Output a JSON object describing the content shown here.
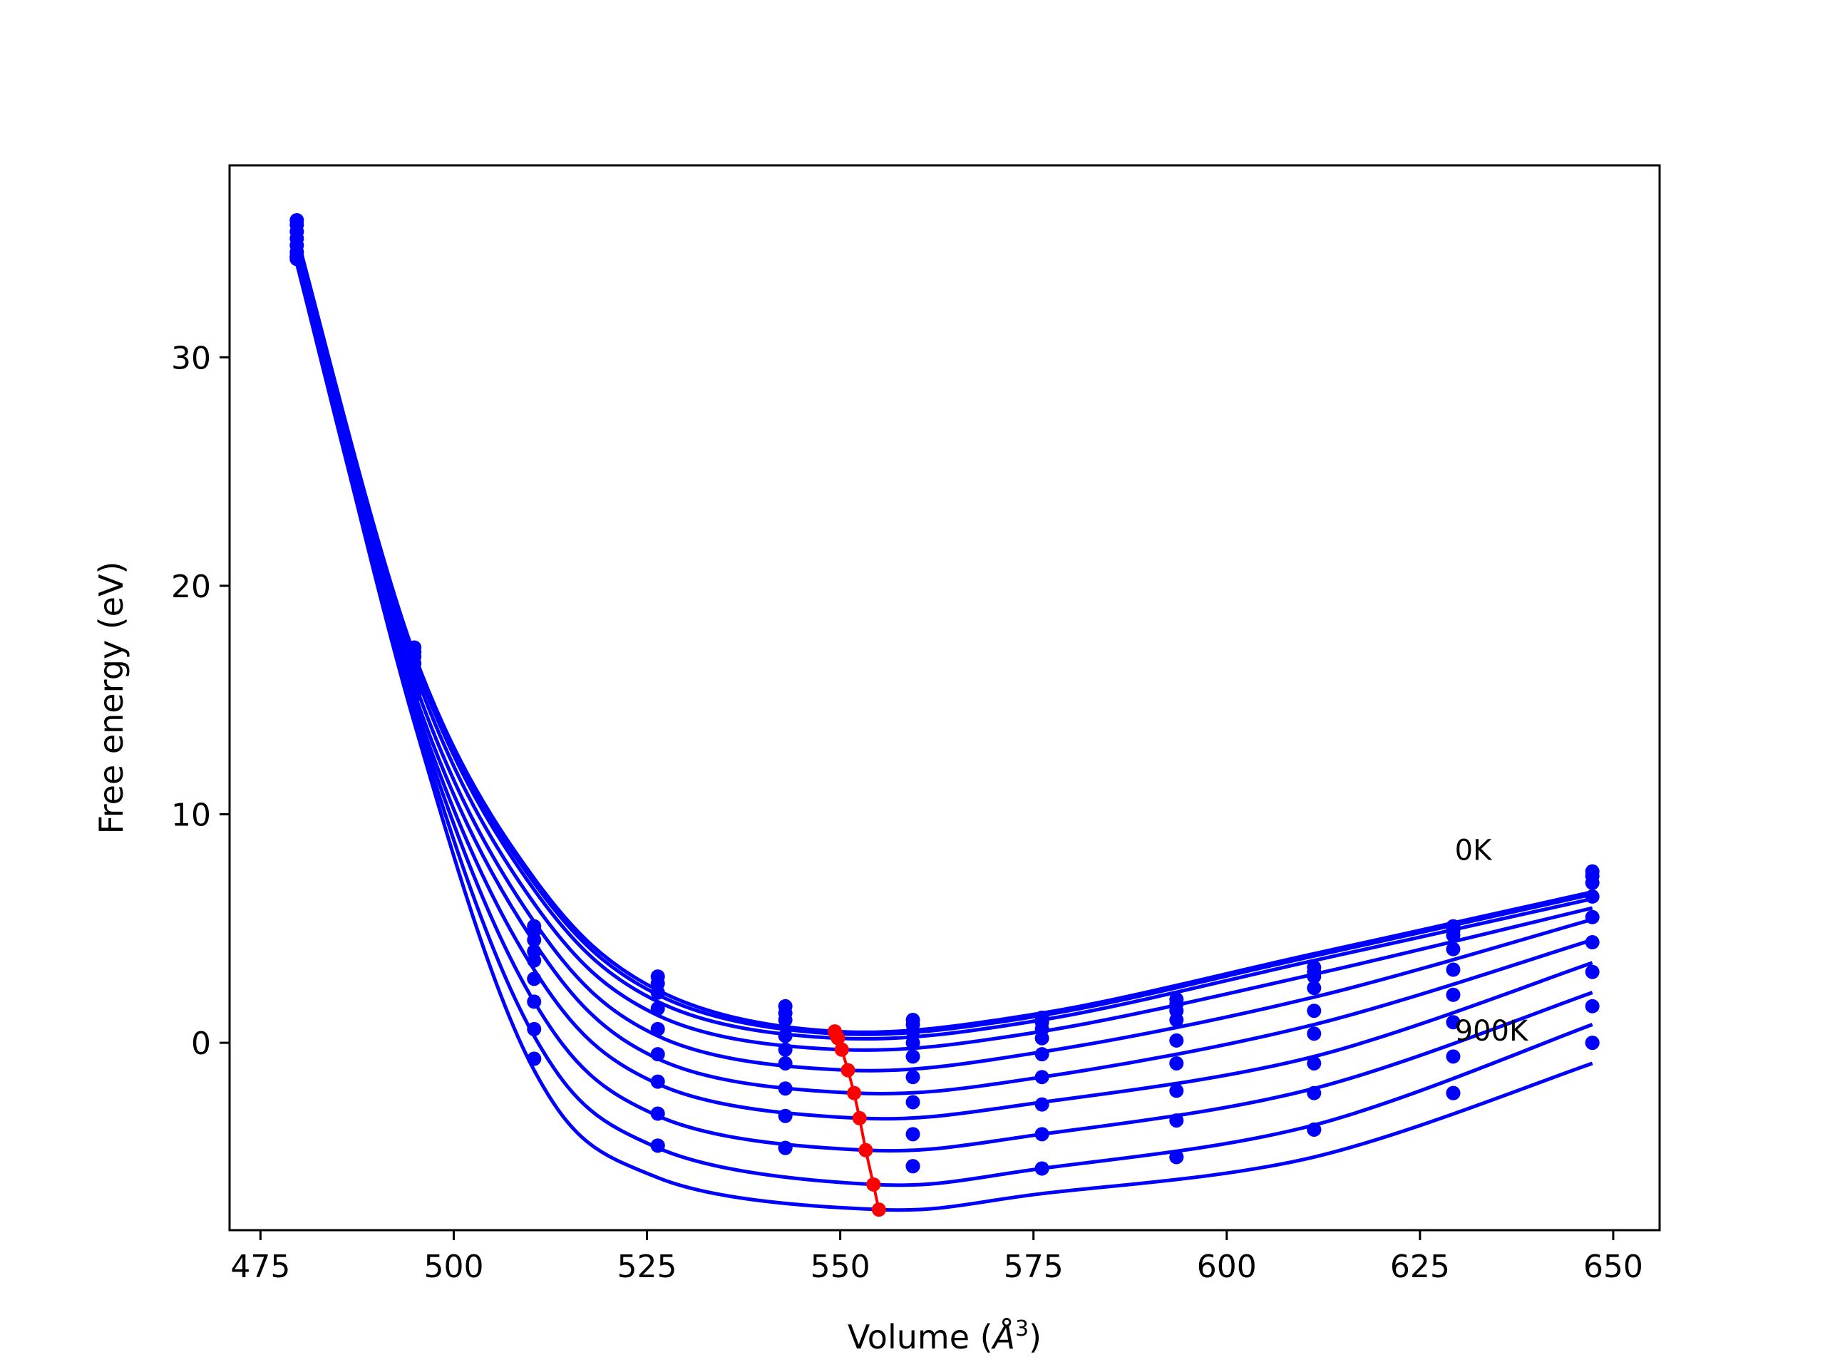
{
  "colors": {
    "curve": "#0000ff",
    "points": "#0000ff",
    "minima": "#ff0000",
    "axes": "#000000"
  },
  "chart_data": {
    "type": "line",
    "title": "",
    "xlabel": "Volume (",
    "xlabel_sym": "Å",
    "xlabel_sup": "3",
    "xlabel_end": ")",
    "ylabel": "Free energy (eV)",
    "xlim": [
      471,
      656
    ],
    "ylim": [
      -8.2,
      38.4
    ],
    "xticks": [
      475,
      500,
      525,
      550,
      575,
      600,
      625,
      650
    ],
    "yticks": [
      0,
      10,
      20,
      30
    ],
    "grid": false,
    "legend": "none",
    "annotations": [
      {
        "text": "0K",
        "x": 629.5,
        "y": 8.0
      },
      {
        "text": "900K",
        "x": 629.5,
        "y": 0.1
      }
    ],
    "x": [
      479.7,
      494.9,
      510.4,
      526.4,
      542.9,
      559.4,
      576.1,
      593.5,
      611.3,
      629.3,
      647.3
    ],
    "series": [
      {
        "values": [
          36.0,
          17.3,
          5.1,
          2.9,
          1.6,
          1.0,
          1.1,
          1.9,
          3.3,
          5.1,
          7.5
        ],
        "fit": [
          [
            479.7,
            35.3
          ],
          [
            494.9,
            17.0
          ],
          [
            510.4,
            7.2
          ],
          [
            526.4,
            2.3
          ],
          [
            549.3,
            0.5
          ],
          [
            576.1,
            1.3
          ],
          [
            611.3,
            3.9
          ],
          [
            647.3,
            6.6
          ]
        ]
      },
      {
        "values": [
          35.8,
          17.1,
          4.9,
          2.6,
          1.3,
          0.8,
          0.9,
          1.7,
          3.1,
          4.9,
          7.3
        ],
        "fit": [
          [
            479.7,
            35.2
          ],
          [
            494.9,
            16.9
          ],
          [
            510.4,
            7.0
          ],
          [
            526.4,
            2.1
          ],
          [
            549.4,
            0.4
          ],
          [
            576.1,
            1.2
          ],
          [
            611.3,
            3.8
          ],
          [
            647.3,
            6.5
          ]
        ]
      },
      {
        "values": [
          35.5,
          16.9,
          4.5,
          2.2,
          1.0,
          0.5,
          0.6,
          1.4,
          2.9,
          4.7,
          7.0
        ],
        "fit": [
          [
            479.7,
            35.0
          ],
          [
            494.9,
            16.7
          ],
          [
            510.4,
            6.7
          ],
          [
            526.4,
            1.8
          ],
          [
            549.7,
            0.2
          ],
          [
            576.1,
            1.0
          ],
          [
            611.3,
            3.6
          ],
          [
            647.3,
            6.3
          ]
        ]
      },
      {
        "values": [
          35.2,
          16.6,
          4.0,
          1.5,
          0.3,
          0.0,
          0.2,
          1.0,
          2.4,
          4.1,
          6.4
        ],
        "fit": [
          [
            479.7,
            34.8
          ],
          [
            494.9,
            16.3
          ],
          [
            510.4,
            6.1
          ],
          [
            526.4,
            1.2
          ],
          [
            550.2,
            -0.3
          ],
          [
            576.1,
            0.5
          ],
          [
            611.3,
            3.0
          ],
          [
            647.3,
            5.9
          ]
        ]
      },
      {
        "values": [
          34.9,
          16.3,
          3.6,
          0.6,
          -0.3,
          -0.6,
          -0.5,
          0.1,
          1.4,
          3.2,
          5.5
        ],
        "fit": [
          [
            479.7,
            34.6
          ],
          [
            494.9,
            15.8
          ],
          [
            510.4,
            5.3
          ],
          [
            526.4,
            0.3
          ],
          [
            551.0,
            -1.2
          ],
          [
            576.1,
            -0.4
          ],
          [
            611.3,
            2.0
          ],
          [
            647.3,
            5.4
          ]
        ]
      },
      {
        "values": [
          34.6,
          15.9,
          2.8,
          -0.5,
          -0.9,
          -1.5,
          -1.5,
          -0.9,
          0.4,
          2.1,
          4.4
        ],
        "fit": [
          [
            479.7,
            34.4
          ],
          [
            494.9,
            15.3
          ],
          [
            510.4,
            4.4
          ],
          [
            526.4,
            -0.7
          ],
          [
            551.8,
            -2.2
          ],
          [
            576.1,
            -1.5
          ],
          [
            611.3,
            0.8
          ],
          [
            647.3,
            4.5
          ]
        ]
      },
      {
        "values": [
          34.4,
          15.6,
          1.8,
          -1.7,
          -2.0,
          -2.6,
          -2.7,
          -2.1,
          -0.9,
          0.9,
          3.1
        ],
        "fit": [
          [
            479.7,
            34.2
          ],
          [
            494.9,
            14.9
          ],
          [
            510.4,
            3.2
          ],
          [
            526.4,
            -1.8
          ],
          [
            552.5,
            -3.3
          ],
          [
            576.1,
            -2.6
          ],
          [
            611.3,
            -0.6
          ],
          [
            647.3,
            3.5
          ]
        ]
      },
      {
        "values": [
          34.3,
          15.4,
          0.6,
          -3.1,
          -3.2,
          -4.0,
          -4.0,
          -3.4,
          -2.2,
          -0.6,
          1.6
        ],
        "fit": [
          [
            479.7,
            34.1
          ],
          [
            494.9,
            14.6
          ],
          [
            510.4,
            1.8
          ],
          [
            526.4,
            -3.2
          ],
          [
            553.3,
            -4.7
          ],
          [
            576.1,
            -4.0
          ],
          [
            611.3,
            -2.0
          ],
          [
            647.3,
            2.2
          ]
        ]
      },
      {
        "values": [
          34.4,
          15.2,
          -0.7,
          -4.5,
          -4.6,
          -5.4,
          -5.5,
          -5.0,
          -3.8,
          -2.2,
          0.0
        ],
        "fit": [
          [
            479.7,
            34.3
          ],
          [
            494.9,
            14.3
          ],
          [
            510.4,
            0.3
          ],
          [
            526.4,
            -4.6
          ],
          [
            554.3,
            -6.2
          ],
          [
            576.1,
            -5.5
          ],
          [
            611.3,
            -3.6
          ],
          [
            647.3,
            0.8
          ]
        ]
      },
      {
        "values": [
          34.4,
          15.2,
          -0.7,
          -4.5,
          -4.6,
          -5.4,
          -5.5,
          -5.0,
          -3.8,
          -2.2,
          0.0
        ],
        "fit": [
          [
            479.7,
            34.5
          ],
          [
            494.9,
            14.0
          ],
          [
            510.4,
            -1.2
          ],
          [
            526.4,
            -5.9
          ],
          [
            555.0,
            -7.3
          ],
          [
            576.1,
            -6.6
          ],
          [
            611.3,
            -5.0
          ],
          [
            647.3,
            -0.9
          ]
        ]
      }
    ],
    "minima": {
      "x": [
        549.3,
        549.4,
        549.7,
        550.2,
        551.0,
        551.8,
        552.5,
        553.3,
        554.3,
        555.0
      ],
      "y": [
        0.5,
        0.4,
        0.2,
        -0.3,
        -1.2,
        -2.2,
        -3.3,
        -4.7,
        -6.2,
        -7.3
      ]
    }
  }
}
